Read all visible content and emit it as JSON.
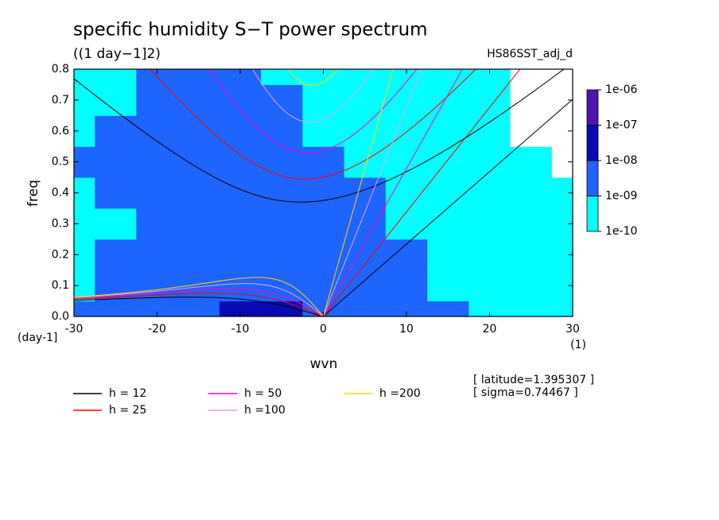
{
  "chart_data": {
    "type": "contour",
    "title": "specific humidity S−T power spectrum",
    "subtitle": "((1 day−1]2)",
    "run_label": "HS86SST_adj_d",
    "xlabel": "wvn",
    "ylabel": "freq",
    "y_unit": "(day-1]",
    "x_unit": "(1)",
    "annotations": [
      "[ latitude=1.395307 ]",
      "[ sigma=0.74467 ]"
    ],
    "xlim": [
      -30,
      30
    ],
    "ylim": [
      0,
      0.8
    ],
    "xticks": [
      -30,
      -20,
      -10,
      0,
      10,
      20,
      30
    ],
    "yticks": [
      {
        "value": 0,
        "label": "0.0"
      },
      0.1,
      0.2,
      0.3,
      0.4,
      0.5,
      0.6,
      0.7,
      0.8
    ],
    "levels": [
      {
        "value": 1e-10,
        "label": "1e-10"
      },
      {
        "value": 1e-09,
        "label": "1e-09"
      },
      {
        "value": 1e-08,
        "label": "1e-08"
      },
      {
        "value": 1e-07,
        "label": "1e-07"
      },
      {
        "value": 1e-06,
        "label": "1e-06"
      }
    ],
    "level_colors": [
      "#00ffff",
      "#1e64ff",
      "#0a0ab4",
      "#5014b4"
    ],
    "field_x": [
      -30,
      -25,
      -20,
      -15,
      -10,
      -5,
      0,
      5,
      10,
      15,
      20,
      25,
      30
    ],
    "field_y": [
      0,
      0.1,
      0.2,
      0.3,
      0.4,
      0.5,
      0.6,
      0.7,
      0.8
    ],
    "field_log10": [
      [
        -8.8,
        -8.6,
        -8.4,
        -8.3,
        -7.9,
        -7.9,
        -8.3,
        -8.5,
        -8.8,
        -9.0,
        -9.2,
        -9.3,
        -9.5
      ],
      [
        -9.1,
        -8.7,
        -8.5,
        -8.4,
        -8.3,
        -8.4,
        -8.5,
        -8.6,
        -8.9,
        -9.1,
        -9.3,
        -9.4,
        -9.6
      ],
      [
        -9.2,
        -9.0,
        -8.8,
        -8.6,
        -8.5,
        -8.5,
        -8.6,
        -8.7,
        -9.0,
        -9.2,
        -9.4,
        -9.6,
        -9.7
      ],
      [
        -9.2,
        -9.1,
        -8.9,
        -8.7,
        -8.6,
        -8.6,
        -8.7,
        -8.8,
        -9.1,
        -9.3,
        -9.5,
        -9.7,
        -9.9
      ],
      [
        -9.1,
        -9.0,
        -8.8,
        -8.7,
        -8.6,
        -8.7,
        -8.8,
        -9.0,
        -9.2,
        -9.4,
        -9.6,
        -9.8,
        -10.0
      ],
      [
        -9.0,
        -9.0,
        -8.8,
        -8.7,
        -8.7,
        -8.8,
        -9.0,
        -9.2,
        -9.3,
        -9.5,
        -9.8,
        -10.0,
        -10.1
      ],
      [
        -9.1,
        -9.0,
        -8.8,
        -8.7,
        -8.8,
        -8.9,
        -9.1,
        -9.3,
        -9.4,
        -9.6,
        -9.9,
        -10.1,
        -10.1
      ],
      [
        -9.2,
        -9.1,
        -8.9,
        -8.8,
        -8.9,
        -9.0,
        -9.2,
        -9.4,
        -9.5,
        -9.7,
        -9.9,
        -10.1,
        -10.1
      ],
      [
        -9.3,
        -9.2,
        -9.0,
        -8.9,
        -9.0,
        -9.1,
        -9.3,
        -9.5,
        -9.6,
        -9.8,
        -10.0,
        -10.1,
        -10.1
      ]
    ],
    "series": [
      {
        "name": "h = 12",
        "h": 12,
        "color": "#000000"
      },
      {
        "name": "h = 25",
        "h": 25,
        "color": "#ff0000"
      },
      {
        "name": "h = 50",
        "h": 50,
        "color": "#ff00c8"
      },
      {
        "name": "h =100",
        "h": 100,
        "color": "#e6a0e6"
      },
      {
        "name": "h =200",
        "h": 200,
        "color": "#ffd700"
      }
    ]
  }
}
